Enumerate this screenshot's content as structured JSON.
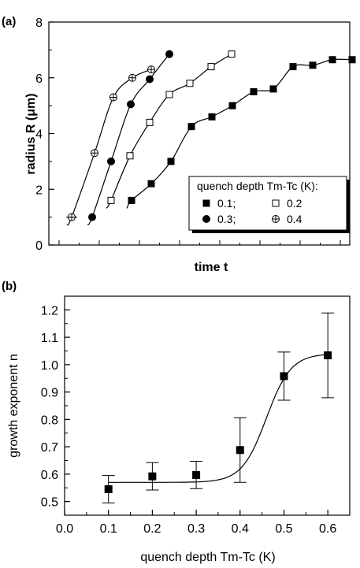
{
  "chart_data": [
    {
      "panel": "(a)",
      "type": "scatter",
      "title": "",
      "xlabel": "time t",
      "ylabel": "radius R (μm)",
      "ylim": [
        0,
        8
      ],
      "yticks": [
        0,
        2,
        4,
        6,
        8
      ],
      "x_tick_labels_shown": false,
      "grid": false,
      "legend": {
        "title": "quench depth Tm-Tc (K):",
        "placement": "bottom-right",
        "entries": [
          {
            "label": "0.1;",
            "marker": "filled-square"
          },
          {
            "label": "0.2",
            "marker": "open-square"
          },
          {
            "label": "0.3;",
            "marker": "filled-circle"
          },
          {
            "label": "0.4",
            "marker": "crossed-circle"
          }
        ]
      },
      "series": [
        {
          "name": "0.4",
          "marker": "crossed-circle",
          "x": [
            1,
            2,
            3,
            4,
            5
          ],
          "y": [
            1.0,
            3.3,
            5.3,
            6.0,
            6.3
          ]
        },
        {
          "name": "0.3",
          "marker": "filled-circle",
          "x": [
            2,
            3,
            4,
            5,
            6
          ],
          "y": [
            1.0,
            3.0,
            5.05,
            5.95,
            6.85
          ]
        },
        {
          "name": "0.2",
          "marker": "open-square",
          "x": [
            3,
            4,
            5,
            6,
            7,
            8,
            9
          ],
          "y": [
            1.6,
            3.2,
            4.4,
            5.4,
            5.8,
            6.4,
            6.85
          ]
        },
        {
          "name": "0.1",
          "marker": "filled-square",
          "x": [
            4,
            5,
            6,
            7,
            8,
            9,
            10,
            11,
            12,
            13,
            14,
            15
          ],
          "y": [
            1.6,
            2.2,
            3.0,
            4.25,
            4.6,
            5.0,
            5.5,
            5.6,
            6.4,
            6.45,
            6.65,
            6.65
          ]
        }
      ]
    },
    {
      "panel": "(b)",
      "type": "scatter",
      "title": "",
      "xlabel": "quench depth Tm-Tc (K)",
      "ylabel": "growth exponent n",
      "xlim": [
        0.0,
        0.65
      ],
      "ylim": [
        0.45,
        1.25
      ],
      "xticks": [
        "0.0",
        "0.1",
        "0.2",
        "0.3",
        "0.4",
        "0.5",
        "0.6"
      ],
      "yticks": [
        "0.5",
        "0.6",
        "0.7",
        "0.8",
        "0.9",
        "1.0",
        "1.1",
        "1.2"
      ],
      "grid": false,
      "series": [
        {
          "name": "",
          "x": [
            0.1,
            0.2,
            0.3,
            0.4,
            0.5,
            0.6
          ],
          "y": [
            0.545,
            0.592,
            0.597,
            0.688,
            0.958,
            1.034
          ],
          "error": [
            0.05,
            0.05,
            0.05,
            0.118,
            0.088,
            0.155
          ]
        }
      ]
    }
  ]
}
